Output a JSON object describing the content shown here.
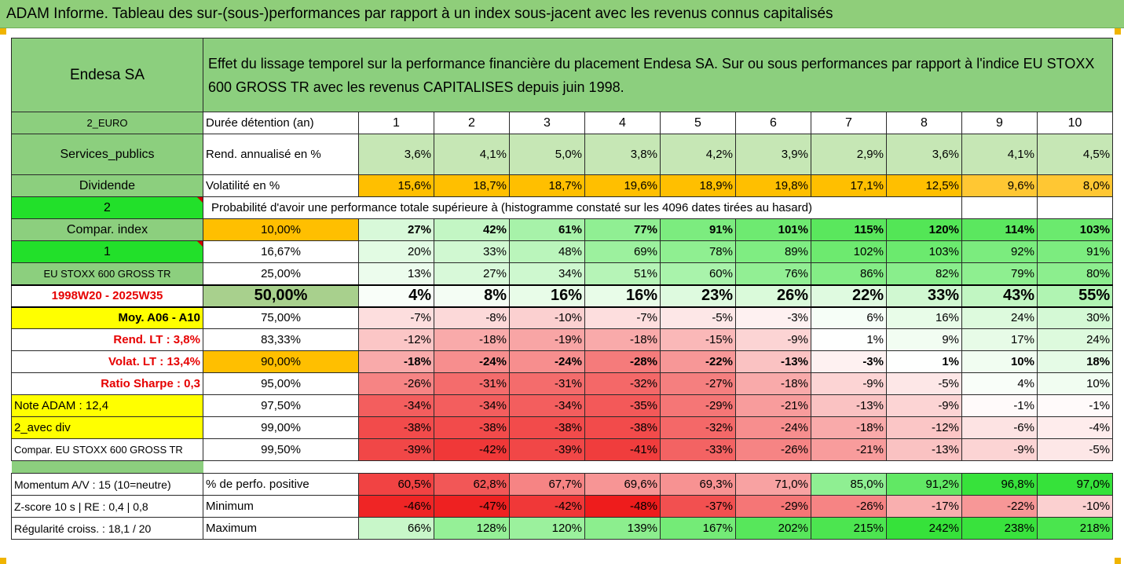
{
  "banner": "ADAM Informe. Tableau des sur-(sous-)performances par rapport à un index sous-jacent avec les revenus connus capitalisés",
  "company": "Endesa SA",
  "description": "Effet du lissage temporel sur la performance financière du placement Endesa SA. Sur ou sous performances par rapport à l'indice EU STOXX 600 GROSS TR avec les revenus CAPITALISES depuis juin 1998.",
  "labels": {
    "currency": "2_EURO",
    "sector": "Services_publics",
    "dividend": "Dividende",
    "flag2": "2",
    "compar": "Compar. index",
    "flag1": "1",
    "index": "EU STOXX 600 GROSS TR",
    "period": "1998W20 - 2025W35",
    "moy": "Moy. A06 - A10",
    "rend_lt": "Rend. LT :   3,8%",
    "volat_lt": "Volat. LT :   13,4%",
    "sharpe": "Ratio Sharpe :   0,3",
    "note": "Note ADAM : 12,4",
    "avec_div": "2_avec div",
    "compar_index": "Compar. EU STOXX 600 GROSS TR",
    "momentum": "Momentum A/V : 15 (10=neutre)",
    "zscore": "Z-score 10 s  | RE : 0,4 | 0,8",
    "regularite": "Régularité croiss. : 18,1 / 20"
  },
  "holding": {
    "label": "Durée détention (an)",
    "years": [
      "1",
      "2",
      "3",
      "4",
      "5",
      "6",
      "7",
      "8",
      "9",
      "10"
    ]
  },
  "rend": {
    "label": "Rend. annualisé en %",
    "values": [
      "3,6%",
      "4,1%",
      "5,0%",
      "3,8%",
      "4,2%",
      "3,9%",
      "2,9%",
      "3,6%",
      "4,1%",
      "4,5%"
    ]
  },
  "vol": {
    "label": "Volatilité en %",
    "values": [
      "15,6%",
      "18,7%",
      "18,7%",
      "19,6%",
      "18,9%",
      "19,8%",
      "17,1%",
      "12,5%",
      "9,6%",
      "8,0%"
    ]
  },
  "prob_title": "Probabilité d'avoir une performance totale supérieure à (histogramme constaté sur les 4096 dates tirées au hasard)",
  "quantiles": [
    {
      "p": "10,00%",
      "v": [
        "27%",
        "42%",
        "61%",
        "77%",
        "91%",
        "101%",
        "115%",
        "120%",
        "114%",
        "103%"
      ]
    },
    {
      "p": "16,67%",
      "v": [
        "20%",
        "33%",
        "48%",
        "69%",
        "78%",
        "89%",
        "102%",
        "103%",
        "92%",
        "91%"
      ]
    },
    {
      "p": "25,00%",
      "v": [
        "13%",
        "27%",
        "34%",
        "51%",
        "60%",
        "76%",
        "86%",
        "82%",
        "79%",
        "80%"
      ]
    },
    {
      "p": "50,00%",
      "v": [
        "4%",
        "8%",
        "16%",
        "16%",
        "23%",
        "26%",
        "22%",
        "33%",
        "43%",
        "55%"
      ]
    },
    {
      "p": "75,00%",
      "v": [
        "-7%",
        "-8%",
        "-10%",
        "-7%",
        "-5%",
        "-3%",
        "6%",
        "16%",
        "24%",
        "30%"
      ]
    },
    {
      "p": "83,33%",
      "v": [
        "-12%",
        "-18%",
        "-19%",
        "-18%",
        "-15%",
        "-9%",
        "1%",
        "9%",
        "17%",
        "24%"
      ]
    },
    {
      "p": "90,00%",
      "v": [
        "-18%",
        "-24%",
        "-24%",
        "-28%",
        "-22%",
        "-13%",
        "-3%",
        "1%",
        "10%",
        "18%"
      ]
    },
    {
      "p": "95,00%",
      "v": [
        "-26%",
        "-31%",
        "-31%",
        "-32%",
        "-27%",
        "-18%",
        "-9%",
        "-5%",
        "4%",
        "10%"
      ]
    },
    {
      "p": "97,50%",
      "v": [
        "-34%",
        "-34%",
        "-34%",
        "-35%",
        "-29%",
        "-21%",
        "-13%",
        "-9%",
        "-1%",
        "-1%"
      ]
    },
    {
      "p": "99,00%",
      "v": [
        "-38%",
        "-38%",
        "-38%",
        "-38%",
        "-32%",
        "-24%",
        "-18%",
        "-12%",
        "-6%",
        "-4%"
      ]
    },
    {
      "p": "99,50%",
      "v": [
        "-39%",
        "-42%",
        "-39%",
        "-41%",
        "-33%",
        "-26%",
        "-21%",
        "-13%",
        "-9%",
        "-5%"
      ]
    }
  ],
  "positive": {
    "label": "% de perfo. positive",
    "values": [
      "60,5%",
      "62,8%",
      "67,7%",
      "69,6%",
      "69,3%",
      "71,0%",
      "85,0%",
      "91,2%",
      "96,8%",
      "97,0%"
    ]
  },
  "minimum": {
    "label": "Minimum",
    "values": [
      "-46%",
      "-47%",
      "-42%",
      "-48%",
      "-37%",
      "-29%",
      "-26%",
      "-17%",
      "-22%",
      "-10%"
    ]
  },
  "maximum": {
    "label": "Maximum",
    "values": [
      "66%",
      "128%",
      "120%",
      "139%",
      "167%",
      "202%",
      "215%",
      "242%",
      "238%",
      "218%"
    ]
  },
  "colors": {
    "label_green": "#8ccf7e",
    "bright_green": "#22e02a",
    "orange": "#ffbf00",
    "yellow": "#ffff00",
    "red_text": "#e60000"
  }
}
